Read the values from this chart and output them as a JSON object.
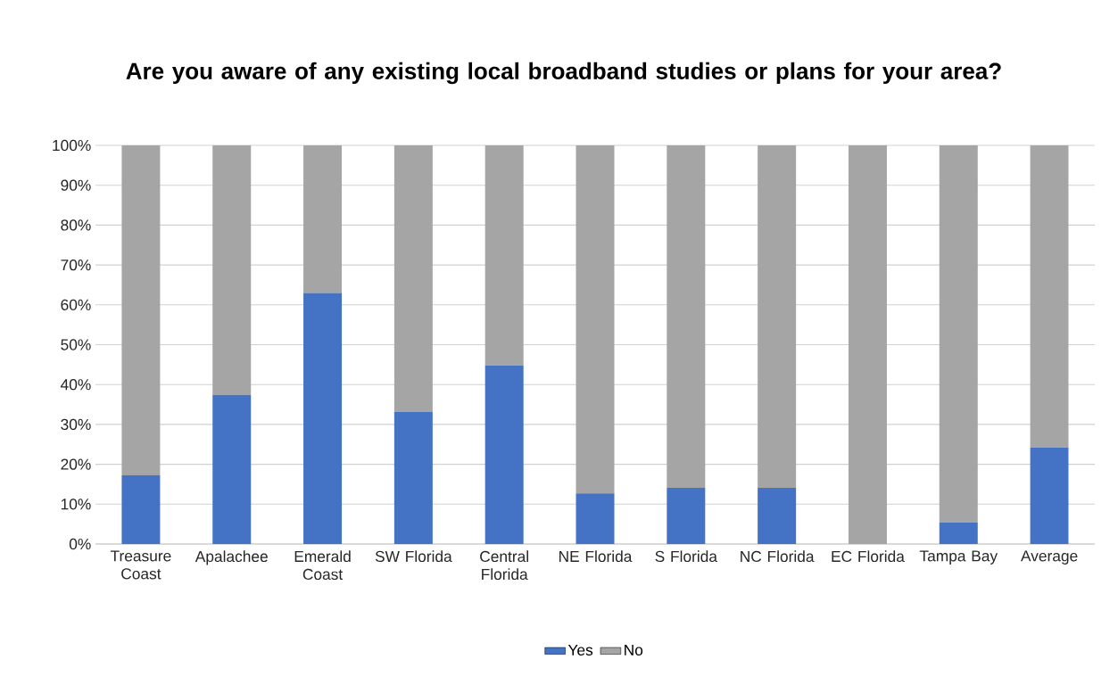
{
  "chart_data": {
    "type": "bar",
    "title": "Are you aware of any existing local broadband studies or plans for your area?",
    "categories": [
      "Treasure Coast",
      "Apalachee",
      "Emerald Coast",
      "SW Florida",
      "Central Florida",
      "NE Florida",
      "S Florida",
      "NC Florida",
      "EC Florida",
      "Tampa Bay",
      "Average"
    ],
    "stacked": true,
    "series": [
      {
        "name": "Yes",
        "color": "#4472c4",
        "values": [
          17.2,
          37.4,
          63.0,
          33.1,
          44.8,
          12.7,
          14.1,
          14.1,
          0,
          5.4,
          24.2
        ]
      },
      {
        "name": "No",
        "color": "#a5a5a5",
        "values": [
          82.8,
          62.6,
          37.0,
          66.9,
          55.2,
          87.3,
          85.9,
          85.9,
          100,
          94.6,
          75.8
        ]
      }
    ],
    "ylim": [
      0,
      100
    ],
    "yticks": [
      {
        "value": 0,
        "label": "0%"
      },
      {
        "value": 10,
        "label": "10%"
      },
      {
        "value": 20,
        "label": "20%"
      },
      {
        "value": 30,
        "label": "30%"
      },
      {
        "value": 40,
        "label": "40%"
      },
      {
        "value": 50,
        "label": "50%"
      },
      {
        "value": 60,
        "label": "60%"
      },
      {
        "value": 70,
        "label": "70%"
      },
      {
        "value": 80,
        "label": "80%"
      },
      {
        "value": 90,
        "label": "90%"
      },
      {
        "value": 100,
        "label": "100%"
      }
    ],
    "grid": "y",
    "legend": "bottom"
  }
}
